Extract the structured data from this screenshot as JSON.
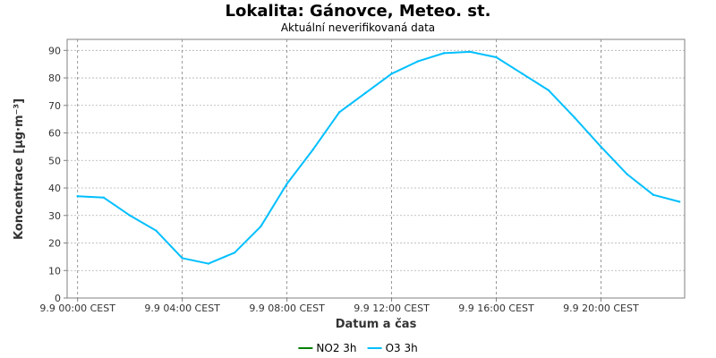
{
  "chart_data": {
    "type": "line",
    "title": "Lokalita: Gánovce, Meteo. st.",
    "subtitle": "Aktuální neverifikovaná data",
    "xlabel": "Datum a čas",
    "ylabel": "Koncentrace [µg·m⁻³]",
    "ylim": [
      0,
      94
    ],
    "xlim": [
      -0.4,
      23.2
    ],
    "y_ticks": [
      0,
      10,
      20,
      30,
      40,
      50,
      60,
      70,
      80,
      90
    ],
    "x_ticks": [
      {
        "x": 0,
        "label": "9.9 00:00 CEST"
      },
      {
        "x": 4,
        "label": "9.9 04:00 CEST"
      },
      {
        "x": 8,
        "label": "9.9 08:00 CEST"
      },
      {
        "x": 12,
        "label": "9.9 12:00 CEST"
      },
      {
        "x": 16,
        "label": "9.9 16:00 CEST"
      },
      {
        "x": 20,
        "label": "9.9 20:00 CEST"
      }
    ],
    "grid": true,
    "legend_position": "bottom-center",
    "series": [
      {
        "name": "NO2 3h",
        "color": "#008000",
        "x": [],
        "y": []
      },
      {
        "name": "O3 3h",
        "color": "#00bfff",
        "x": [
          0,
          1,
          2,
          3,
          4,
          5,
          6,
          7,
          8,
          9,
          10,
          11,
          12,
          13,
          14,
          15,
          16,
          17,
          18,
          19,
          20,
          21,
          22,
          23
        ],
        "y": [
          37,
          36.5,
          30,
          24.5,
          14.5,
          12.5,
          16.5,
          26,
          41.5,
          54,
          67.5,
          74.5,
          81.5,
          86,
          89,
          89.5,
          87.5,
          81.5,
          75.5,
          65.5,
          55,
          45,
          37.5,
          35
        ]
      }
    ]
  }
}
